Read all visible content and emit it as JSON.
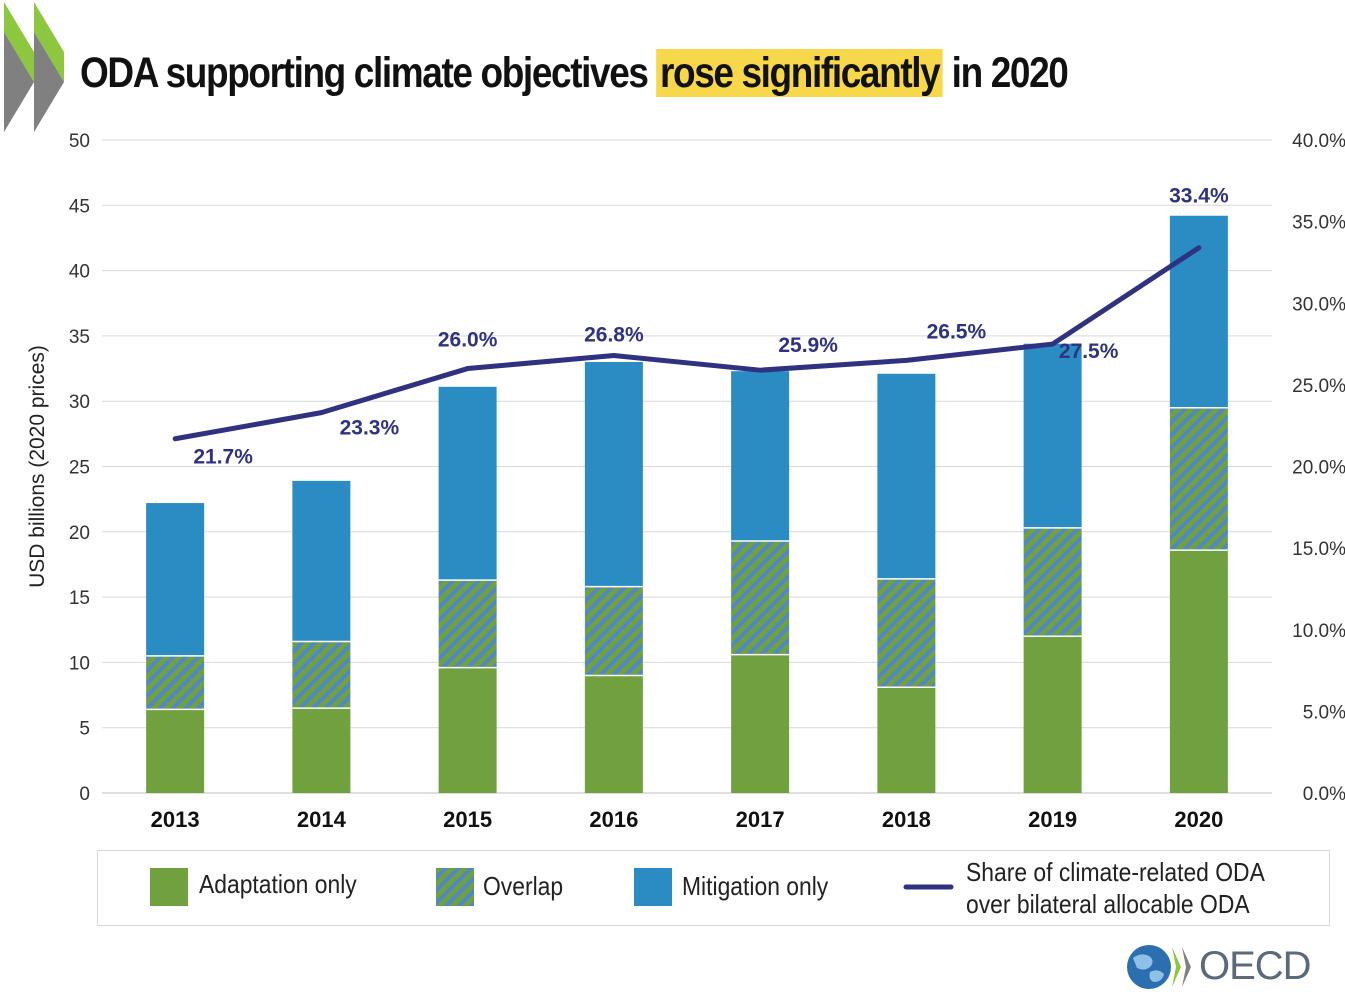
{
  "title": {
    "before": "ODA supporting climate objectives ",
    "highlight": "rose significantly",
    "after": " in 2020"
  },
  "logo": {
    "text": "OECD"
  },
  "colors": {
    "adaptation": "#70a13e",
    "mitigation": "#2b8cc4",
    "overlap_stripe_a": "#70a13e",
    "overlap_stripe_b": "#4f88c7",
    "line": "#2e3281",
    "highlight": "#f7d84a",
    "chevron_green": "#8dc63f",
    "chevron_gray": "#7f7f7f"
  },
  "legend": {
    "adaptation": "Adaptation only",
    "overlap": "Overlap",
    "mitigation": "Mitigation only",
    "share_line1": "Share of climate-related ODA",
    "share_line2": "over bilateral allocable ODA"
  },
  "chart_data": {
    "type": "bar",
    "stacked": true,
    "categories": [
      "2013",
      "2014",
      "2015",
      "2016",
      "2017",
      "2018",
      "2019",
      "2020"
    ],
    "ylabel": "USD billions (2020 prices)",
    "ylim": [
      0,
      50
    ],
    "yticks": [
      "0",
      "5",
      "10",
      "15",
      "20",
      "25",
      "30",
      "35",
      "40",
      "45",
      "50"
    ],
    "y2lim": [
      0,
      40
    ],
    "y2ticks": [
      "0.0%",
      "5.0%",
      "10.0%",
      "15.0%",
      "20.0%",
      "25.0%",
      "30.0%",
      "35.0%",
      "40.0%"
    ],
    "grid": true,
    "legend_position": "bottom",
    "series": [
      {
        "name": "Adaptation only",
        "values": [
          6.4,
          6.5,
          9.6,
          9.0,
          10.6,
          8.1,
          12.0,
          18.6
        ]
      },
      {
        "name": "Overlap",
        "values": [
          4.1,
          5.1,
          6.7,
          6.8,
          8.7,
          8.3,
          8.3,
          10.9
        ]
      },
      {
        "name": "Mitigation only",
        "values": [
          11.7,
          12.3,
          14.8,
          17.2,
          13.0,
          15.7,
          14.1,
          14.7
        ]
      }
    ],
    "line_series": {
      "name": "Share of climate-related ODA over bilateral allocable ODA",
      "axis": "right",
      "values": [
        21.7,
        23.3,
        26.0,
        26.8,
        25.9,
        26.5,
        27.5,
        33.4
      ],
      "labels": [
        "21.7%",
        "23.3%",
        "26.0%",
        "26.8%",
        "25.9%",
        "26.5%",
        "27.5%",
        "33.4%"
      ]
    }
  }
}
